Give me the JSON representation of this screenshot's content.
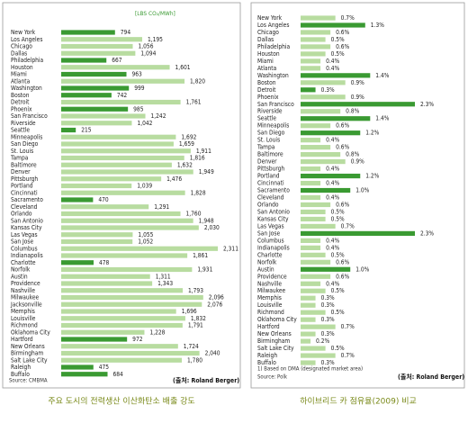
{
  "chart_data": [
    {
      "type": "bar",
      "orientation": "horizontal",
      "title": "주요 도시의 전력생산 이산화탄소 배출 강도",
      "subtitle": "[LBS CO₂/MWh]",
      "source": "Source: CMBMA",
      "credit": "(출처: Roland Berger)",
      "categories": [
        "New York",
        "Los Angeles",
        "Chicago",
        "Dallas",
        "Philadelphia",
        "Houston",
        "Miami",
        "Atlanta",
        "Washington",
        "Boston",
        "Detroit",
        "Phoenix",
        "San Francisco",
        "Riverside",
        "Seattle",
        "Minneapolis",
        "San Diego",
        "St. Louis",
        "Tampa",
        "Baltimore",
        "Denver",
        "Pittsburgh",
        "Portland",
        "Cincinnati",
        "Sacramento",
        "Cleveland",
        "Orlando",
        "San Antonio",
        "Kansas City",
        "Las Vegas",
        "San Jose",
        "Columbus",
        "Indianapolis",
        "Charlotte",
        "Norfolk",
        "Austin",
        "Providence",
        "Nashville",
        "Milwaukee",
        "Jacksonville",
        "Memphis",
        "Louisville",
        "Richmond",
        "Oklahoma City",
        "Hartford",
        "New Orleans",
        "Birmingham",
        "Salt Lake City",
        "Raleigh",
        "Buffalo"
      ],
      "values": [
        794,
        1195,
        1056,
        1094,
        667,
        1601,
        963,
        1820,
        999,
        742,
        1761,
        985,
        1242,
        1042,
        215,
        1692,
        1659,
        1911,
        1816,
        1632,
        1949,
        1476,
        1039,
        1828,
        470,
        1291,
        1760,
        1948,
        2030,
        1055,
        1052,
        2311,
        1861,
        478,
        1931,
        1311,
        1343,
        1793,
        2096,
        2076,
        1696,
        1832,
        1791,
        1228,
        972,
        1724,
        2040,
        1780,
        475,
        684
      ],
      "value_labels": [
        "794",
        "1,195",
        "1,056",
        "1,094",
        "667",
        "1,601",
        "963",
        "1,820",
        "999",
        "742",
        "1,761",
        "985",
        "1,242",
        "1,042",
        "215",
        "1,692",
        "1,659",
        "1,911",
        "1,816",
        "1,632",
        "1,949",
        "1,476",
        "1,039",
        "1,828",
        "470",
        "1,291",
        "1,760",
        "1,948",
        "2,030",
        "1,055",
        "1,052",
        "2,311",
        "1,861",
        "478",
        "1,931",
        "1,311",
        "1,343",
        "1,793",
        "2,096",
        "2,076",
        "1,696",
        "1,832",
        "1,791",
        "1,228",
        "972",
        "1,724",
        "2,040",
        "1,780",
        "475",
        "684"
      ],
      "colors": [
        "#3a9a32",
        "#b8dca0",
        "#b8dca0",
        "#b8dca0",
        "#3a9a32",
        "#b8dca0",
        "#3a9a32",
        "#b8dca0",
        "#3a9a32",
        "#3a9a32",
        "#b8dca0",
        "#3a9a32",
        "#b8dca0",
        "#b8dca0",
        "#3a9a32",
        "#b8dca0",
        "#b8dca0",
        "#b8dca0",
        "#b8dca0",
        "#b8dca0",
        "#b8dca0",
        "#b8dca0",
        "#b8dca0",
        "#b8dca0",
        "#3a9a32",
        "#b8dca0",
        "#b8dca0",
        "#b8dca0",
        "#b8dca0",
        "#b8dca0",
        "#b8dca0",
        "#b8dca0",
        "#b8dca0",
        "#3a9a32",
        "#b8dca0",
        "#b8dca0",
        "#b8dca0",
        "#b8dca0",
        "#b8dca0",
        "#b8dca0",
        "#b8dca0",
        "#b8dca0",
        "#b8dca0",
        "#b8dca0",
        "#3a9a32",
        "#b8dca0",
        "#b8dca0",
        "#b8dca0",
        "#3a9a32",
        "#3a9a32"
      ]
    },
    {
      "type": "bar",
      "orientation": "horizontal",
      "title": "하이브리드 카 점유율(2009) 비교",
      "footnote": "1) Based on DMA (designated market area)",
      "source": "Source: Polk",
      "credit": "(출처: Roland Berger)",
      "categories": [
        "New York",
        "Los Angeles",
        "Chicago",
        "Dallas",
        "Philadelphia",
        "Houston",
        "Miami",
        "Atlanta",
        "Washington",
        "Boston",
        "Detroit",
        "Phoenix",
        "San Francisco",
        "Riverside",
        "Seattle",
        "Minneapolis",
        "San Diego",
        "St. Louis",
        "Tampa",
        "Baltimore",
        "Denver",
        "Pittsburgh",
        "Portland",
        "Cincinnati",
        "Sacramento",
        "Cleveland",
        "Orlando",
        "San Antonio",
        "Kansas City",
        "Las Vegas",
        "San Jose",
        "Columbus",
        "Indianapolis",
        "Charlotte",
        "Norfolk",
        "Austin",
        "Providence",
        "Nashville",
        "Milwaukee",
        "Memphis",
        "Louisville",
        "Richmond",
        "Oklahoma City",
        "Hartford",
        "New Orleans",
        "Birmingham",
        "Salt Lake City",
        "Raleigh",
        "Buffalo"
      ],
      "values": [
        0.7,
        1.3,
        0.6,
        0.5,
        0.6,
        0.5,
        0.4,
        0.4,
        1.4,
        0.9,
        0.3,
        0.9,
        2.3,
        0.8,
        1.4,
        0.6,
        1.2,
        0.4,
        0.6,
        0.8,
        0.9,
        0.4,
        1.2,
        0.4,
        1.0,
        0.4,
        0.6,
        0.5,
        0.5,
        0.7,
        2.3,
        0.4,
        0.4,
        0.5,
        0.6,
        1.0,
        0.6,
        0.4,
        0.5,
        0.3,
        0.3,
        0.5,
        0.3,
        0.7,
        0.3,
        0.2,
        0.5,
        0.7,
        0.3
      ],
      "value_labels": [
        "0.7%",
        "1.3%",
        "0.6%",
        "0.5%",
        "0.6%",
        "0.5%",
        "0.4%",
        "0.4%",
        "1.4%",
        "0.9%",
        "0.3%",
        "0.9%",
        "2.3%",
        "0.8%",
        "1.4%",
        "0.6%",
        "1.2%",
        "0.4%",
        "0.6%",
        "0.8%",
        "0.9%",
        "0.4%",
        "1.2%",
        "0.4%",
        "1.0%",
        "0.4%",
        "0.6%",
        "0.5%",
        "0.5%",
        "0.7%",
        "2.3%",
        "0.4%",
        "0.4%",
        "0.5%",
        "0.6%",
        "1.0%",
        "0.6%",
        "0.4%",
        "0.5%",
        "0.3%",
        "0.3%",
        "0.5%",
        "0.3%",
        "0.7%",
        "0.3%",
        "0.2%",
        "0.5%",
        "0.7%",
        "0.3%"
      ],
      "colors": [
        "#b8dca0",
        "#3a9a32",
        "#b8dca0",
        "#b8dca0",
        "#b8dca0",
        "#b8dca0",
        "#b8dca0",
        "#b8dca0",
        "#3a9a32",
        "#b8dca0",
        "#3a9a32",
        "#b8dca0",
        "#3a9a32",
        "#b8dca0",
        "#3a9a32",
        "#b8dca0",
        "#3a9a32",
        "#b8dca0",
        "#b8dca0",
        "#b8dca0",
        "#b8dca0",
        "#b8dca0",
        "#3a9a32",
        "#b8dca0",
        "#3a9a32",
        "#b8dca0",
        "#b8dca0",
        "#b8dca0",
        "#b8dca0",
        "#b8dca0",
        "#3a9a32",
        "#b8dca0",
        "#b8dca0",
        "#b8dca0",
        "#b8dca0",
        "#3a9a32",
        "#b8dca0",
        "#b8dca0",
        "#b8dca0",
        "#b8dca0",
        "#b8dca0",
        "#b8dca0",
        "#b8dca0",
        "#b8dca0",
        "#b8dca0",
        "#b8dca0",
        "#b8dca0",
        "#b8dca0",
        "#b8dca0"
      ]
    }
  ]
}
